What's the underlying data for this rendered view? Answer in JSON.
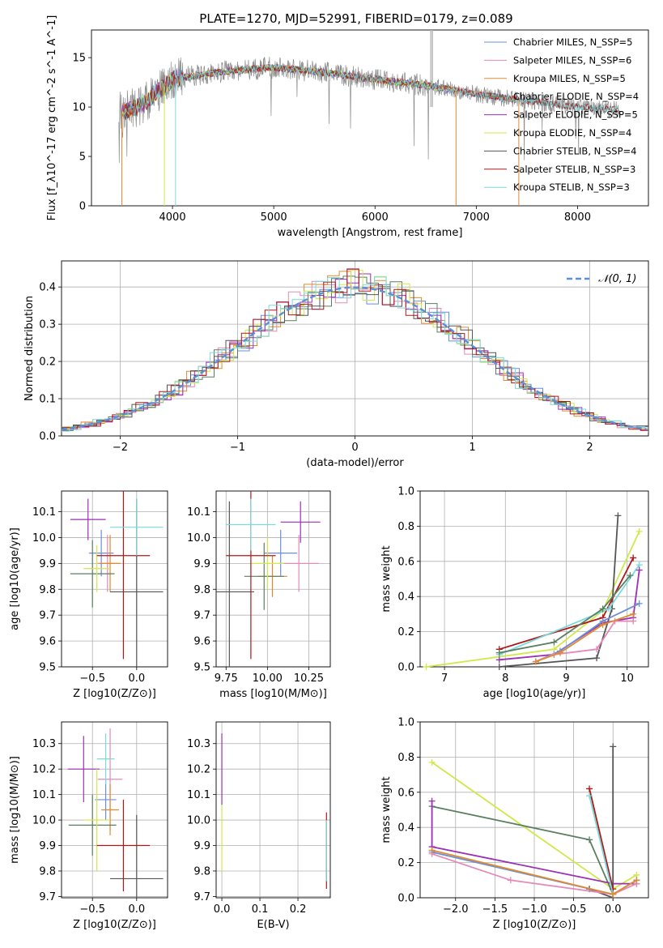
{
  "figure_title": "PLATE=1270, MJD=52991, FIBERID=0179, z=0.089",
  "colors": {
    "Chabrier MILES": "#6a8fd8",
    "Salpeter MILES": "#e38ab8",
    "Kroupa MILES": "#e08a2e",
    "Chabrier ELODIE": "#5a7f60",
    "Salpeter ELODIE": "#9b30b5",
    "Kroupa ELODIE": "#cfe84a",
    "Chabrier STELIB": "#555555",
    "Salpeter STELIB": "#b01818",
    "Kroupa STELIB": "#7ad9dd",
    "data": "#8c8c8c",
    "gauss": "#5b8fd6",
    "grid": "#b0b0b0"
  },
  "chart_data": [
    {
      "id": "spectrum",
      "type": "line",
      "xlabel": "wavelength [Angstrom, rest frame]",
      "ylabel": "Flux [f_λ10^-17 erg cm^-2 s^-1 A^-1]",
      "xlim": [
        3200,
        8700
      ],
      "ylim": [
        0,
        17.8
      ],
      "xticks": [
        4000,
        5000,
        6000,
        7000,
        8000
      ],
      "yticks": [
        0,
        5,
        10,
        15
      ],
      "grid": false,
      "legend_position": "top-right",
      "series": [
        {
          "name": "Chabrier MILES, N_SSP=5"
        },
        {
          "name": "Salpeter MILES, N_SSP=6"
        },
        {
          "name": "Kroupa MILES, N_SSP=5"
        },
        {
          "name": "Chabrier ELODIE, N_SSP=4"
        },
        {
          "name": "Salpeter ELODIE, N_SSP=5"
        },
        {
          "name": "Kroupa ELODIE, N_SSP=4"
        },
        {
          "name": "Chabrier STELIB, N_SSP=4"
        },
        {
          "name": "Salpeter STELIB, N_SSP=3"
        },
        {
          "name": "Kroupa STELIB, N_SSP=3"
        }
      ],
      "continuum_anchor": {
        "x": [
          3500,
          3700,
          4000,
          4500,
          5000,
          5500,
          6000,
          6500,
          7000,
          7500,
          8000,
          8400
        ],
        "y": [
          9.5,
          10.2,
          12.8,
          13.6,
          14.0,
          13.5,
          12.8,
          12.2,
          11.3,
          10.6,
          10.0,
          9.7
        ]
      }
    },
    {
      "id": "residuals",
      "type": "histogram",
      "xlabel": "(data-model)/error",
      "ylabel": "Normed distribution",
      "xlim": [
        -2.5,
        2.5
      ],
      "ylim": [
        0,
        0.47
      ],
      "xticks": [
        -2,
        -1,
        0,
        1,
        2
      ],
      "yticks": [
        0.0,
        0.1,
        0.2,
        0.3,
        0.4
      ],
      "grid": true,
      "legend": "𝒩(0, 1)",
      "legend_position": "top-right",
      "bin_width": 0.1
    },
    {
      "id": "age_vs_Z",
      "type": "errorbar",
      "xlabel": "Z [log10(Z/Z⊙)]",
      "ylabel": "age  [log10(age/yr)]",
      "xlim": [
        -0.85,
        0.35
      ],
      "ylim": [
        9.5,
        10.18
      ],
      "xticks": [
        -0.5,
        0.0
      ],
      "yticks": [
        9.5,
        9.6,
        9.7,
        9.8,
        9.9,
        10.0,
        10.1
      ],
      "grid": true,
      "points": [
        {
          "model": "Chabrier MILES",
          "x": -0.4,
          "xerr": 0.14,
          "y": 9.94,
          "yerr": 0.09
        },
        {
          "model": "Salpeter MILES",
          "x": -0.33,
          "xerr": 0.12,
          "y": 9.9,
          "yerr": 0.11
        },
        {
          "model": "Kroupa MILES",
          "x": -0.3,
          "xerr": 0.12,
          "y": 9.9,
          "yerr": 0.11
        },
        {
          "model": "Chabrier ELODIE",
          "x": -0.5,
          "xerr": 0.25,
          "y": 9.86,
          "yerr": 0.13
        },
        {
          "model": "Salpeter ELODIE",
          "x": -0.55,
          "xerr": 0.2,
          "y": 10.07,
          "yerr": 0.08
        },
        {
          "model": "Kroupa ELODIE",
          "x": -0.45,
          "xerr": 0.15,
          "y": 9.88,
          "yerr": 0.09
        },
        {
          "model": "Chabrier STELIB",
          "x": 0.0,
          "xerr": 0.3,
          "y": 9.79,
          "yerr": 0.36
        },
        {
          "model": "Salpeter STELIB",
          "x": -0.15,
          "xerr": 0.3,
          "y": 9.93,
          "yerr": 0.4
        },
        {
          "model": "Kroupa STELIB",
          "x": 0.0,
          "xerr": 0.3,
          "y": 10.04,
          "yerr": 0.11
        }
      ]
    },
    {
      "id": "age_vs_mass",
      "type": "errorbar",
      "xlabel": "mass [log10(M/M⊙)]",
      "ylabel": "",
      "xlim": [
        9.69,
        10.38
      ],
      "ylim": [
        9.5,
        10.18
      ],
      "xticks": [
        9.75,
        10.0,
        10.25
      ],
      "yticks": [
        9.5,
        9.6,
        9.7,
        9.8,
        9.9,
        10.0,
        10.1
      ],
      "grid": true,
      "points": [
        {
          "model": "Chabrier MILES",
          "x": 10.08,
          "xerr": 0.1,
          "y": 9.94,
          "yerr": 0.09
        },
        {
          "model": "Salpeter MILES",
          "x": 10.19,
          "xerr": 0.12,
          "y": 9.9,
          "yerr": 0.11
        },
        {
          "model": "Kroupa MILES",
          "x": 10.03,
          "xerr": 0.09,
          "y": 9.85,
          "yerr": 0.08
        },
        {
          "model": "Chabrier ELODIE",
          "x": 9.98,
          "xerr": 0.12,
          "y": 9.85,
          "yerr": 0.13
        },
        {
          "model": "Salpeter ELODIE",
          "x": 10.2,
          "xerr": 0.12,
          "y": 10.06,
          "yerr": 0.08
        },
        {
          "model": "Kroupa ELODIE",
          "x": 10.0,
          "xerr": 0.1,
          "y": 9.9,
          "yerr": 0.1
        },
        {
          "model": "Chabrier STELIB",
          "x": 9.77,
          "xerr": 0.15,
          "y": 9.79,
          "yerr": 0.35
        },
        {
          "model": "Salpeter STELIB",
          "x": 9.9,
          "xerr": 0.15,
          "y": 9.93,
          "yerr": 0.4
        },
        {
          "model": "Kroupa STELIB",
          "x": 9.9,
          "xerr": 0.15,
          "y": 10.05,
          "yerr": 0.1
        }
      ]
    },
    {
      "id": "weight_vs_age",
      "type": "line",
      "xlabel": "age  [log10(age/yr)]",
      "ylabel": "mass weight",
      "xlim": [
        6.6,
        10.35
      ],
      "ylim": [
        0,
        1.0
      ],
      "xticks": [
        7,
        8,
        9,
        10
      ],
      "yticks": [
        0.0,
        0.2,
        0.4,
        0.6,
        0.8,
        1.0
      ],
      "grid": true,
      "series": [
        {
          "model": "Kroupa ELODIE",
          "x": [
            6.7,
            8.8,
            9.6,
            10.2
          ],
          "y": [
            0.0,
            0.1,
            0.32,
            0.77
          ]
        },
        {
          "model": "Chabrier STELIB",
          "x": [
            7.9,
            9.5,
            9.75,
            9.85
          ],
          "y": [
            0.0,
            0.05,
            0.33,
            0.86
          ]
        },
        {
          "model": "Salpeter STELIB",
          "x": [
            7.9,
            9.6,
            10.1
          ],
          "y": [
            0.1,
            0.28,
            0.62
          ]
        },
        {
          "model": "Kroupa STELIB",
          "x": [
            7.9,
            9.7,
            10.2
          ],
          "y": [
            0.07,
            0.33,
            0.58
          ]
        },
        {
          "model": "Chabrier ELODIE",
          "x": [
            7.9,
            8.8,
            9.6,
            10.05
          ],
          "y": [
            0.08,
            0.14,
            0.33,
            0.52
          ]
        },
        {
          "model": "Salpeter ELODIE",
          "x": [
            7.9,
            8.8,
            9.6,
            10.1,
            10.2
          ],
          "y": [
            0.04,
            0.07,
            0.25,
            0.28,
            0.55
          ]
        },
        {
          "model": "Chabrier MILES",
          "x": [
            8.5,
            8.9,
            9.6,
            10.2
          ],
          "y": [
            0.03,
            0.09,
            0.26,
            0.36
          ]
        },
        {
          "model": "Salpeter MILES",
          "x": [
            8.5,
            8.8,
            9.5,
            9.8,
            10.1
          ],
          "y": [
            0.03,
            0.07,
            0.1,
            0.26,
            0.26
          ]
        },
        {
          "model": "Kroupa MILES",
          "x": [
            8.5,
            8.9,
            9.6,
            10.1
          ],
          "y": [
            0.03,
            0.08,
            0.24,
            0.3
          ]
        }
      ]
    },
    {
      "id": "mass_vs_Z",
      "type": "errorbar",
      "xlabel": "Z [log10(Z/Z⊙)]",
      "ylabel": "mass [log10(M/M⊙)]",
      "xlim": [
        -0.85,
        0.35
      ],
      "ylim": [
        9.695,
        10.385
      ],
      "xticks": [
        -0.5,
        0.0
      ],
      "yticks": [
        9.7,
        9.8,
        9.9,
        10.0,
        10.1,
        10.2,
        10.3
      ],
      "grid": true,
      "points": [
        {
          "model": "Chabrier MILES",
          "x": -0.35,
          "xerr": 0.12,
          "y": 10.08,
          "yerr": 0.08
        },
        {
          "model": "Salpeter MILES",
          "x": -0.3,
          "xerr": 0.14,
          "y": 10.16,
          "yerr": 0.2
        },
        {
          "model": "Kroupa MILES",
          "x": -0.3,
          "xerr": 0.1,
          "y": 10.04,
          "yerr": 0.1
        },
        {
          "model": "Chabrier ELODIE",
          "x": -0.5,
          "xerr": 0.27,
          "y": 9.98,
          "yerr": 0.12
        },
        {
          "model": "Salpeter ELODIE",
          "x": -0.6,
          "xerr": 0.18,
          "y": 10.2,
          "yerr": 0.13
        },
        {
          "model": "Kroupa ELODIE",
          "x": -0.45,
          "xerr": 0.15,
          "y": 10.0,
          "yerr": 0.2
        },
        {
          "model": "Chabrier STELIB",
          "x": 0.0,
          "xerr": 0.3,
          "y": 9.77,
          "yerr": 0.25
        },
        {
          "model": "Salpeter STELIB",
          "x": -0.15,
          "xerr": 0.3,
          "y": 9.9,
          "yerr": 0.18
        },
        {
          "model": "Kroupa STELIB",
          "x": -0.35,
          "xerr": 0.1,
          "y": 10.24,
          "yerr": 0.1
        }
      ]
    },
    {
      "id": "mass_vs_ebv",
      "type": "errorbar",
      "xlabel": "E(B-V)",
      "ylabel": "",
      "xlim": [
        -0.015,
        0.285
      ],
      "ylim": [
        9.695,
        10.385
      ],
      "xticks": [
        0.0,
        0.1,
        0.2
      ],
      "yticks": [
        9.7,
        9.8,
        9.9,
        10.0,
        10.1,
        10.2,
        10.3
      ],
      "grid": true,
      "points": [
        {
          "model": "Salpeter ELODIE",
          "x": 0.0,
          "y": 10.2,
          "yerr": 0.14
        },
        {
          "model": "Kroupa ELODIE",
          "x": 0.0,
          "y": 9.93,
          "yerr": 0.13
        },
        {
          "model": "Salpeter STELIB",
          "x": 0.275,
          "y": 9.88,
          "yerr": 0.15
        },
        {
          "model": "Kroupa STELIB",
          "x": 0.275,
          "y": 9.88,
          "yerr": 0.12
        }
      ]
    },
    {
      "id": "weight_vs_Z",
      "type": "line",
      "xlabel": "Z [log10(Z/Z⊙)]",
      "ylabel": "mass weight",
      "xlim": [
        -2.45,
        0.45
      ],
      "ylim": [
        0,
        1.0
      ],
      "xticks": [
        -2.0,
        -1.5,
        -1.0,
        -0.5,
        0.0
      ],
      "yticks": [
        0.0,
        0.2,
        0.4,
        0.6,
        0.8,
        1.0
      ],
      "grid": true,
      "series": [
        {
          "model": "Kroupa ELODIE",
          "x": [
            -2.3,
            0.0,
            0.3
          ],
          "y": [
            0.77,
            0.05,
            0.13
          ]
        },
        {
          "model": "Chabrier ELODIE",
          "x": [
            -2.3,
            -0.3,
            0.0
          ],
          "y": [
            0.52,
            0.33,
            0.02
          ]
        },
        {
          "model": "Salpeter ELODIE",
          "x": [
            -2.3,
            -2.3,
            0.0,
            0.3
          ],
          "y": [
            0.55,
            0.29,
            0.08,
            0.08
          ]
        },
        {
          "model": "Chabrier STELIB",
          "x": [
            -0.3,
            0.0,
            0.0
          ],
          "y": [
            0.05,
            0.0,
            0.86
          ]
        },
        {
          "model": "Salpeter STELIB",
          "x": [
            -0.3,
            0.0
          ],
          "y": [
            0.62,
            0.05
          ]
        },
        {
          "model": "Kroupa STELIB",
          "x": [
            -0.3,
            0.0
          ],
          "y": [
            0.58,
            0.02
          ]
        },
        {
          "model": "Chabrier MILES",
          "x": [
            -2.3,
            0.0,
            0.3
          ],
          "y": [
            0.26,
            0.02,
            0.1
          ]
        },
        {
          "model": "Salpeter MILES",
          "x": [
            -2.3,
            -1.3,
            0.0,
            0.3
          ],
          "y": [
            0.25,
            0.1,
            0.02,
            0.08
          ]
        },
        {
          "model": "Kroupa MILES",
          "x": [
            -2.3,
            0.0,
            0.3
          ],
          "y": [
            0.27,
            0.02,
            0.1
          ]
        }
      ]
    }
  ]
}
